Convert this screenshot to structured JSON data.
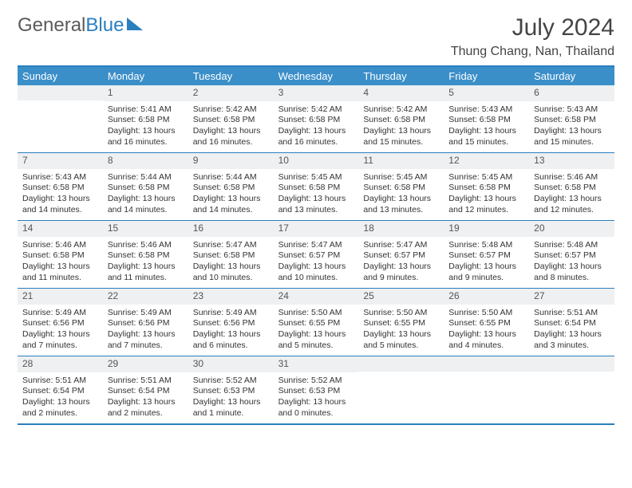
{
  "logo": {
    "part1": "General",
    "part2": "Blue"
  },
  "title": "July 2024",
  "location": "Thung Chang, Nan, Thailand",
  "colors": {
    "header_bg": "#3b8fc9",
    "border": "#2a7fbf",
    "daynum_bg": "#eef0f2",
    "text": "#333333"
  },
  "weekdays": [
    "Sunday",
    "Monday",
    "Tuesday",
    "Wednesday",
    "Thursday",
    "Friday",
    "Saturday"
  ],
  "calendar": {
    "rows": 5,
    "cols": 7,
    "first_day_col": 1,
    "last_day": 31
  },
  "days": {
    "1": {
      "sunrise": "5:41 AM",
      "sunset": "6:58 PM",
      "daylight": "13 hours and 16 minutes."
    },
    "2": {
      "sunrise": "5:42 AM",
      "sunset": "6:58 PM",
      "daylight": "13 hours and 16 minutes."
    },
    "3": {
      "sunrise": "5:42 AM",
      "sunset": "6:58 PM",
      "daylight": "13 hours and 16 minutes."
    },
    "4": {
      "sunrise": "5:42 AM",
      "sunset": "6:58 PM",
      "daylight": "13 hours and 15 minutes."
    },
    "5": {
      "sunrise": "5:43 AM",
      "sunset": "6:58 PM",
      "daylight": "13 hours and 15 minutes."
    },
    "6": {
      "sunrise": "5:43 AM",
      "sunset": "6:58 PM",
      "daylight": "13 hours and 15 minutes."
    },
    "7": {
      "sunrise": "5:43 AM",
      "sunset": "6:58 PM",
      "daylight": "13 hours and 14 minutes."
    },
    "8": {
      "sunrise": "5:44 AM",
      "sunset": "6:58 PM",
      "daylight": "13 hours and 14 minutes."
    },
    "9": {
      "sunrise": "5:44 AM",
      "sunset": "6:58 PM",
      "daylight": "13 hours and 14 minutes."
    },
    "10": {
      "sunrise": "5:45 AM",
      "sunset": "6:58 PM",
      "daylight": "13 hours and 13 minutes."
    },
    "11": {
      "sunrise": "5:45 AM",
      "sunset": "6:58 PM",
      "daylight": "13 hours and 13 minutes."
    },
    "12": {
      "sunrise": "5:45 AM",
      "sunset": "6:58 PM",
      "daylight": "13 hours and 12 minutes."
    },
    "13": {
      "sunrise": "5:46 AM",
      "sunset": "6:58 PM",
      "daylight": "13 hours and 12 minutes."
    },
    "14": {
      "sunrise": "5:46 AM",
      "sunset": "6:58 PM",
      "daylight": "13 hours and 11 minutes."
    },
    "15": {
      "sunrise": "5:46 AM",
      "sunset": "6:58 PM",
      "daylight": "13 hours and 11 minutes."
    },
    "16": {
      "sunrise": "5:47 AM",
      "sunset": "6:58 PM",
      "daylight": "13 hours and 10 minutes."
    },
    "17": {
      "sunrise": "5:47 AM",
      "sunset": "6:57 PM",
      "daylight": "13 hours and 10 minutes."
    },
    "18": {
      "sunrise": "5:47 AM",
      "sunset": "6:57 PM",
      "daylight": "13 hours and 9 minutes."
    },
    "19": {
      "sunrise": "5:48 AM",
      "sunset": "6:57 PM",
      "daylight": "13 hours and 9 minutes."
    },
    "20": {
      "sunrise": "5:48 AM",
      "sunset": "6:57 PM",
      "daylight": "13 hours and 8 minutes."
    },
    "21": {
      "sunrise": "5:49 AM",
      "sunset": "6:56 PM",
      "daylight": "13 hours and 7 minutes."
    },
    "22": {
      "sunrise": "5:49 AM",
      "sunset": "6:56 PM",
      "daylight": "13 hours and 7 minutes."
    },
    "23": {
      "sunrise": "5:49 AM",
      "sunset": "6:56 PM",
      "daylight": "13 hours and 6 minutes."
    },
    "24": {
      "sunrise": "5:50 AM",
      "sunset": "6:55 PM",
      "daylight": "13 hours and 5 minutes."
    },
    "25": {
      "sunrise": "5:50 AM",
      "sunset": "6:55 PM",
      "daylight": "13 hours and 5 minutes."
    },
    "26": {
      "sunrise": "5:50 AM",
      "sunset": "6:55 PM",
      "daylight": "13 hours and 4 minutes."
    },
    "27": {
      "sunrise": "5:51 AM",
      "sunset": "6:54 PM",
      "daylight": "13 hours and 3 minutes."
    },
    "28": {
      "sunrise": "5:51 AM",
      "sunset": "6:54 PM",
      "daylight": "13 hours and 2 minutes."
    },
    "29": {
      "sunrise": "5:51 AM",
      "sunset": "6:54 PM",
      "daylight": "13 hours and 2 minutes."
    },
    "30": {
      "sunrise": "5:52 AM",
      "sunset": "6:53 PM",
      "daylight": "13 hours and 1 minute."
    },
    "31": {
      "sunrise": "5:52 AM",
      "sunset": "6:53 PM",
      "daylight": "13 hours and 0 minutes."
    }
  },
  "labels": {
    "sunrise": "Sunrise:",
    "sunset": "Sunset:",
    "daylight": "Daylight:"
  }
}
